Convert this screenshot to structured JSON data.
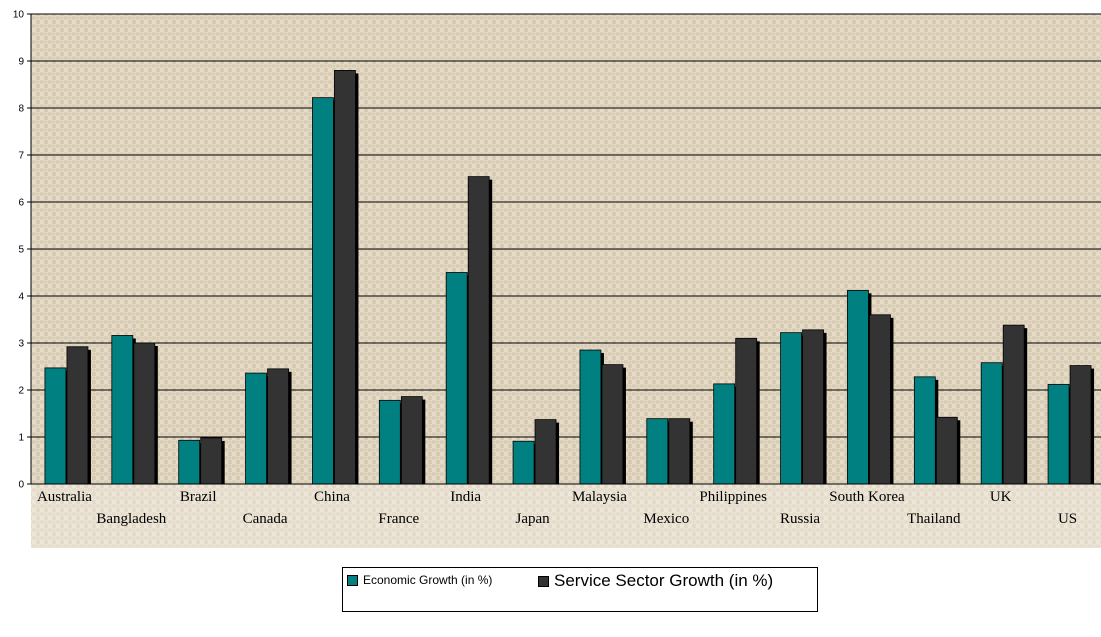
{
  "chart_data": {
    "type": "bar",
    "categories": [
      "Australia",
      "Bangladesh",
      "Brazil",
      "Canada",
      "China",
      "France",
      "India",
      "Japan",
      "Malaysia",
      "Mexico",
      "Philippines",
      "Russia",
      "South Korea",
      "Thailand",
      "UK",
      "US"
    ],
    "series": [
      {
        "name": "Economic Growth (in %)",
        "color": "#008080",
        "values": [
          2.47,
          3.16,
          0.93,
          2.36,
          8.22,
          1.78,
          4.5,
          0.91,
          2.85,
          1.39,
          2.13,
          3.22,
          4.12,
          2.28,
          2.58,
          2.12
        ]
      },
      {
        "name": "Service Sector Growth (in %)",
        "color": "#333333",
        "values": [
          2.92,
          3.0,
          0.98,
          2.45,
          8.8,
          1.86,
          6.54,
          1.37,
          2.54,
          1.39,
          3.1,
          3.28,
          3.6,
          1.42,
          3.38,
          2.52
        ]
      }
    ],
    "yticks": [
      "0",
      "1",
      "2",
      "3",
      "4",
      "5",
      "6",
      "7",
      "8",
      "9",
      "10"
    ],
    "ylim": [
      0,
      10
    ],
    "grid": true,
    "legend_position": "bottom-center"
  }
}
